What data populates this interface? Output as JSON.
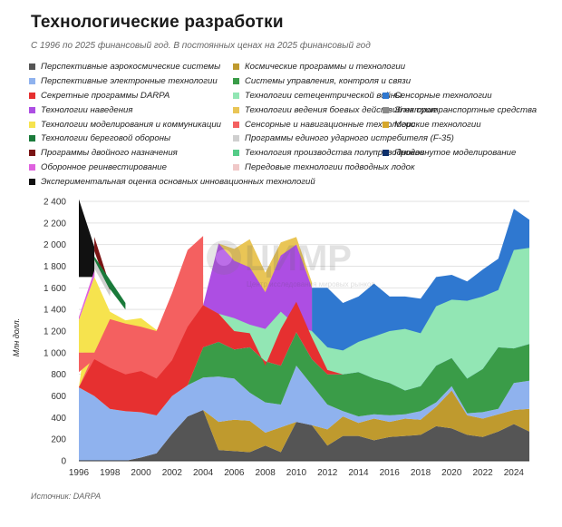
{
  "title": "Технологические разработки",
  "subtitle": "С 1996 по 2025 финансовый год. В постоянных ценах на 2025 финансовый год",
  "source": "Источник: DARPA",
  "watermark": "ЦИМР",
  "watermark_sub": "Центр исследования мировых рынков",
  "legend": [
    {
      "label": "Перспективные аэрокосмические системы",
      "color": "#555555"
    },
    {
      "label": "Космические программы и технологии",
      "color": "#bf9a2e"
    },
    {
      "label": "Перспективные электронные технологии",
      "color": "#8fb2ee"
    },
    {
      "label": "Системы управления, контроля и связи",
      "color": "#3a9c48"
    },
    {
      "label": "Секретные программы DARPA",
      "color": "#e63030"
    },
    {
      "label": "Технологии сетецентрической войны",
      "color": "#92e6b4"
    },
    {
      "label": "Сенсорные технологии",
      "color": "#2f78d0"
    },
    {
      "label": "Технологии наведения",
      "color": "#ad4ee3"
    },
    {
      "label": "Технологии ведения боевых действий на суше",
      "color": "#e9c556"
    },
    {
      "label": "Электротранспортные средства",
      "color": "#8c8c8c"
    },
    {
      "label": "Технологии моделирования и коммуникации",
      "color": "#f6e34e"
    },
    {
      "label": "Сенсорные и навигационные технологии",
      "color": "#f46060"
    },
    {
      "label": "Морские технологии",
      "color": "#d6a72c"
    },
    {
      "label": "Технологии береговой обороны",
      "color": "#1a7a3a"
    },
    {
      "label": "Программы единого ударного истребителя (F-35)",
      "color": "#cfcfcf"
    },
    {
      "label": "Программы двойного назначения",
      "color": "#7a1414"
    },
    {
      "label": "Технология производства полупроводников",
      "color": "#55cc88"
    },
    {
      "label": "Продвинутое моделирование",
      "color": "#0d2f6a"
    },
    {
      "label": "Оборонное реинвестирование",
      "color": "#df62df"
    },
    {
      "label": "Передовые технологии подводных лодок",
      "color": "#f0c8c8"
    },
    {
      "label": "Экспериментальная оценка основных инновационных технологий",
      "color": "#111111"
    }
  ],
  "chart_data": {
    "type": "area",
    "stacked": true,
    "ylabel": "Млн долл.",
    "ylim": [
      0,
      2400
    ],
    "yticks": [
      "0",
      "200",
      "400",
      "600",
      "800",
      "1 000",
      "1 200",
      "1 400",
      "1 600",
      "1 800",
      "2 000",
      "2 200",
      "2 400"
    ],
    "xticks": [
      "1996",
      "1998",
      "2000",
      "2002",
      "2004",
      "2006",
      "2008",
      "2010",
      "2012",
      "2014",
      "2016",
      "2018",
      "2020",
      "2022",
      "2024"
    ],
    "x": [
      1996,
      1997,
      1998,
      1999,
      2000,
      2001,
      2002,
      2003,
      2004,
      2005,
      2006,
      2007,
      2008,
      2009,
      2010,
      2011,
      2012,
      2013,
      2014,
      2015,
      2016,
      2017,
      2018,
      2019,
      2020,
      2021,
      2022,
      2023,
      2024,
      2025
    ],
    "series": [
      {
        "name": "Перспективные аэрокосмические системы",
        "values": [
          0,
          0,
          0,
          0,
          30,
          70,
          250,
          410,
          470,
          100,
          90,
          80,
          140,
          80,
          360,
          330,
          140,
          230,
          230,
          190,
          220,
          230,
          240,
          320,
          300,
          240,
          220,
          270,
          340,
          270
        ]
      },
      {
        "name": "Космические программы и технологии",
        "values": [
          0,
          0,
          0,
          0,
          0,
          0,
          0,
          0,
          0,
          260,
          290,
          290,
          120,
          230,
          0,
          0,
          150,
          180,
          120,
          200,
          140,
          160,
          140,
          180,
          350,
          180,
          170,
          160,
          130,
          210
        ]
      },
      {
        "name": "Перспективные электронные технологии",
        "values": [
          680,
          600,
          480,
          460,
          420,
          350,
          350,
          290,
          300,
          420,
          380,
          260,
          280,
          210,
          520,
          370,
          230,
          50,
          60,
          40,
          60,
          40,
          80,
          40,
          40,
          20,
          60,
          50,
          250,
          260
        ]
      },
      {
        "name": "Системы управления, контроля и связи",
        "values": [
          0,
          0,
          0,
          0,
          0,
          0,
          0,
          0,
          280,
          320,
          270,
          420,
          380,
          360,
          310,
          240,
          280,
          340,
          410,
          330,
          300,
          220,
          230,
          340,
          260,
          320,
          400,
          570,
          320,
          340
        ]
      },
      {
        "name": "Секретные программы DARPA",
        "values": [
          0,
          0,
          0,
          0,
          0,
          0,
          0,
          0,
          0,
          0,
          0,
          0,
          0,
          0,
          0,
          0,
          0,
          0,
          0,
          0,
          0,
          0,
          0,
          0,
          0,
          0,
          0,
          0,
          0,
          0
        ]
      },
      {
        "name": "Технологии сетецентрической войны",
        "values": [
          0,
          0,
          0,
          0,
          0,
          0,
          0,
          0,
          0,
          0,
          0,
          0,
          0,
          0,
          0,
          0,
          0,
          0,
          0,
          0,
          0,
          0,
          0,
          0,
          0,
          0,
          0,
          0,
          0,
          0
        ]
      },
      {
        "name": "Сенсорные технологии",
        "values": [
          0,
          0,
          0,
          0,
          0,
          0,
          0,
          0,
          0,
          0,
          0,
          0,
          0,
          0,
          0,
          0,
          0,
          0,
          0,
          0,
          0,
          0,
          0,
          0,
          0,
          0,
          0,
          0,
          0,
          0
        ]
      },
      {
        "name": "Технологии наведения",
        "values": [
          0,
          0,
          0,
          0,
          0,
          0,
          0,
          0,
          0,
          0,
          0,
          0,
          0,
          0,
          0,
          0,
          0,
          0,
          0,
          0,
          0,
          0,
          0,
          0,
          0,
          0,
          0,
          0,
          0,
          0
        ]
      },
      {
        "name": "Технологии ведения боевых действий на суше",
        "values": [
          0,
          0,
          0,
          0,
          0,
          0,
          0,
          0,
          0,
          0,
          0,
          0,
          0,
          0,
          0,
          0,
          0,
          0,
          0,
          0,
          0,
          0,
          0,
          0,
          0,
          0,
          0,
          0,
          0,
          0
        ]
      },
      {
        "name": "Электротранспортные средства",
        "values": [
          0,
          0,
          0,
          0,
          0,
          0,
          0,
          0,
          0,
          0,
          0,
          0,
          0,
          0,
          0,
          0,
          0,
          0,
          0,
          0,
          0,
          0,
          0,
          0,
          0,
          0,
          0,
          0,
          0,
          0
        ]
      },
      {
        "name": "Технологии моделирования и коммуникации",
        "values": [
          0,
          0,
          0,
          0,
          0,
          0,
          0,
          0,
          0,
          0,
          0,
          0,
          0,
          0,
          0,
          0,
          0,
          0,
          0,
          0,
          0,
          0,
          0,
          0,
          0,
          0,
          0,
          0,
          0,
          0
        ]
      },
      {
        "name": "Сенсорные и навигационные технологии",
        "values": [
          0,
          0,
          0,
          0,
          0,
          0,
          0,
          0,
          0,
          0,
          0,
          0,
          0,
          0,
          0,
          0,
          0,
          0,
          0,
          0,
          0,
          0,
          0,
          0,
          0,
          0,
          0,
          0,
          0,
          0
        ]
      },
      {
        "name": "Морские технологии",
        "values": [
          0,
          0,
          0,
          0,
          0,
          0,
          0,
          0,
          0,
          0,
          0,
          0,
          0,
          0,
          0,
          0,
          0,
          0,
          0,
          0,
          0,
          0,
          0,
          0,
          0,
          0,
          0,
          0,
          0,
          0
        ]
      },
      {
        "name": "Технологии береговой обороны",
        "values": [
          0,
          0,
          0,
          0,
          0,
          0,
          0,
          0,
          0,
          0,
          0,
          0,
          0,
          0,
          0,
          0,
          0,
          0,
          0,
          0,
          0,
          0,
          0,
          0,
          0,
          0,
          0,
          0,
          0,
          0
        ]
      },
      {
        "name": "Программы единого ударного истребителя (F-35)",
        "values": [
          0,
          0,
          0,
          0,
          0,
          0,
          0,
          0,
          0,
          0,
          0,
          0,
          0,
          0,
          0,
          0,
          0,
          0,
          0,
          0,
          0,
          0,
          0,
          0,
          0,
          0,
          0,
          0,
          0,
          0
        ]
      },
      {
        "name": "Программы двойного назначения",
        "values": [
          0,
          0,
          0,
          0,
          0,
          0,
          0,
          0,
          0,
          0,
          0,
          0,
          0,
          0,
          0,
          0,
          0,
          0,
          0,
          0,
          0,
          0,
          0,
          0,
          0,
          0,
          0,
          0,
          0,
          0
        ]
      },
      {
        "name": "Технология производства полупроводников",
        "values": [
          0,
          0,
          0,
          0,
          0,
          0,
          0,
          0,
          0,
          0,
          0,
          0,
          0,
          0,
          0,
          0,
          0,
          0,
          0,
          0,
          0,
          0,
          0,
          0,
          0,
          0,
          0,
          0,
          0,
          0
        ]
      },
      {
        "name": "Продвинутое моделирование",
        "values": [
          0,
          0,
          0,
          0,
          0,
          0,
          0,
          0,
          0,
          0,
          0,
          0,
          0,
          0,
          0,
          0,
          0,
          0,
          0,
          0,
          0,
          0,
          0,
          0,
          0,
          0,
          0,
          0,
          0,
          0
        ]
      },
      {
        "name": "Оборонное реинвестирование",
        "values": [
          0,
          0,
          0,
          0,
          0,
          0,
          0,
          0,
          0,
          0,
          0,
          0,
          0,
          0,
          0,
          0,
          0,
          0,
          0,
          0,
          0,
          0,
          0,
          0,
          0,
          0,
          0,
          0,
          0,
          0
        ]
      },
      {
        "name": "Передовые технологии подводных лодок",
        "values": [
          0,
          0,
          0,
          0,
          0,
          0,
          0,
          0,
          0,
          0,
          0,
          0,
          0,
          0,
          0,
          0,
          0,
          0,
          0,
          0,
          0,
          0,
          0,
          0,
          0,
          0,
          0,
          0,
          0,
          0
        ]
      },
      {
        "name": "Экспериментальная оценка основных инновационных технологий",
        "values": [
          0,
          0,
          0,
          0,
          0,
          0,
          0,
          0,
          0,
          0,
          0,
          0,
          0,
          0,
          0,
          0,
          0,
          0,
          0,
          0,
          0,
          0,
          0,
          0,
          0,
          0,
          0,
          0,
          0,
          0
        ]
      }
    ],
    "cumulative_tops": {
      "Секретные программы DARPA": [
        680,
        940,
        860,
        800,
        830,
        760,
        930,
        1240,
        1440,
        1360,
        1200,
        1180,
        880,
        1220,
        1470,
        1140,
        840,
        800,
        null,
        null,
        null,
        null,
        null,
        null,
        null,
        null,
        null,
        null,
        null,
        null
      ],
      "Технологии сетецентрической войны": [
        null,
        null,
        null,
        null,
        null,
        null,
        null,
        null,
        1440,
        1360,
        1320,
        1260,
        1220,
        1380,
        1250,
        1200,
        1050,
        1020,
        1100,
        1150,
        1200,
        1220,
        1180,
        1430,
        1490,
        1480,
        1520,
        1580,
        1950,
        1970
      ],
      "Сенсорные технологии": [
        null,
        null,
        null,
        null,
        null,
        null,
        null,
        null,
        1440,
        1800,
        1700,
        1790,
        1700,
        1780,
        1820,
        1600,
        1600,
        1460,
        1520,
        1640,
        1520,
        1520,
        1500,
        1700,
        1720,
        1660,
        1770,
        1870,
        2330,
        2230
      ],
      "Технологии наведения": [
        null,
        null,
        null,
        null,
        null,
        null,
        null,
        null,
        1440,
        2010,
        1850,
        1790,
        1560,
        1900,
        2000,
        1600,
        null,
        null,
        null,
        null,
        null,
        null,
        null,
        null,
        null,
        null,
        null,
        null,
        null,
        null
      ],
      "Технологии ведения боевых действий на суше": [
        null,
        null,
        null,
        null,
        null,
        null,
        null,
        null,
        null,
        2010,
        1960,
        2050,
        1740,
        2020,
        2070,
        1650,
        null,
        null,
        null,
        null,
        null,
        null,
        null,
        null,
        null,
        null,
        null,
        null,
        null,
        null
      ],
      "Технологии моделирования и коммуникации": [
        680,
        1700,
        1380,
        1300,
        1320,
        1210,
        1350,
        1600,
        1720,
        null,
        null,
        null,
        null,
        null,
        null,
        null,
        null,
        null,
        null,
        null,
        null,
        null,
        null,
        null,
        null,
        null,
        null,
        null,
        null,
        null
      ],
      "Сенсорные и навигационные технологии": [
        680,
        1000,
        1310,
        1270,
        1240,
        1200,
        1550,
        1950,
        2080,
        null,
        null,
        null,
        null,
        null,
        null,
        null,
        null,
        null,
        null,
        null,
        null,
        null,
        null,
        null,
        null,
        null,
        null,
        null,
        null,
        null
      ]
    }
  }
}
